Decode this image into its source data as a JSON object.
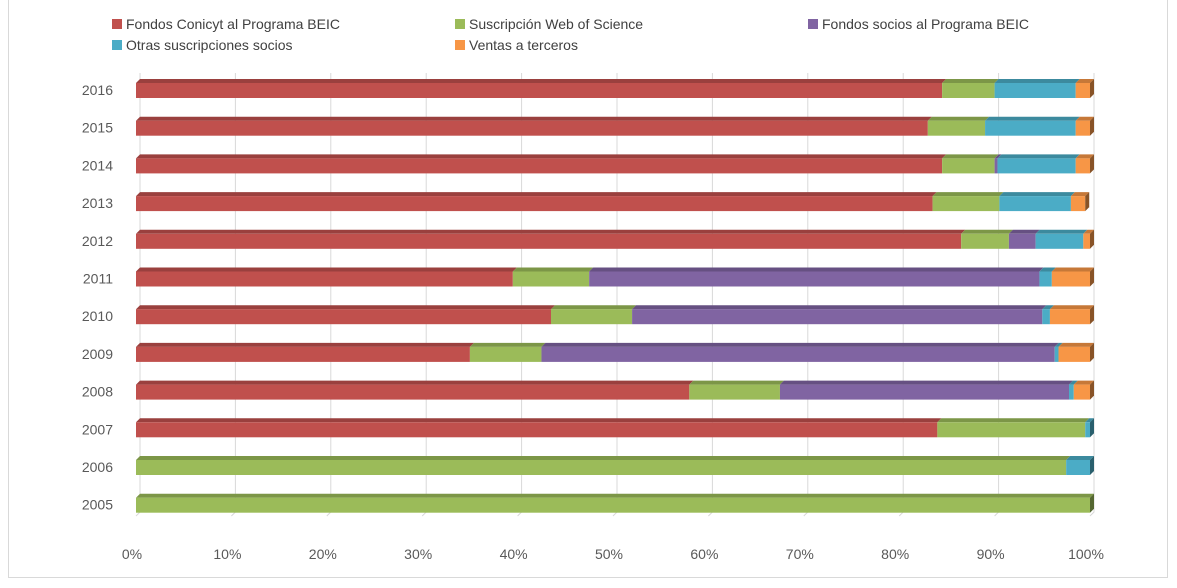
{
  "chart_data": {
    "type": "bar",
    "orientation": "horizontal",
    "stacked": "percent",
    "title": "",
    "xlabel": "",
    "ylabel": "",
    "xlim": [
      0,
      100
    ],
    "x_ticks": [
      "0%",
      "10%",
      "20%",
      "30%",
      "40%",
      "50%",
      "60%",
      "70%",
      "80%",
      "90%",
      "100%"
    ],
    "grid": "vertical",
    "legend_position": "top",
    "categories": [
      "2016",
      "2015",
      "2014",
      "2013",
      "2012",
      "2011",
      "2010",
      "2009",
      "2008",
      "2007",
      "2006",
      "2005"
    ],
    "series": [
      {
        "name": "Fondos Conicyt al Programa BEIC",
        "color": "#c0504d",
        "values": [
          84.5,
          83,
          84.5,
          83.5,
          86.5,
          39.5,
          43.5,
          35,
          58,
          84,
          0,
          0
        ]
      },
      {
        "name": "Suscripción Web of Science",
        "color": "#9bbb59",
        "values": [
          5.5,
          6,
          5.5,
          7,
          5,
          8,
          8.5,
          7.5,
          9.5,
          15.5,
          97.5,
          100
        ]
      },
      {
        "name": "Fondos socios al Programa BEIC",
        "color": "#8064a2",
        "values": [
          0,
          0,
          0.3,
          0,
          2.8,
          47.2,
          43,
          53.8,
          30.3,
          0,
          0,
          0
        ]
      },
      {
        "name": "Otras suscripciones socios",
        "color": "#4bacc6",
        "values": [
          8.5,
          9.5,
          8.2,
          7.5,
          5,
          1.3,
          0.8,
          0.4,
          0.5,
          0.5,
          2.5,
          0
        ]
      },
      {
        "name": "Ventas a terceros",
        "color": "#f79646",
        "values": [
          1.5,
          1.5,
          1.5,
          1.5,
          0.7,
          4,
          4.2,
          3.3,
          1.7,
          0,
          0,
          0
        ]
      }
    ]
  }
}
